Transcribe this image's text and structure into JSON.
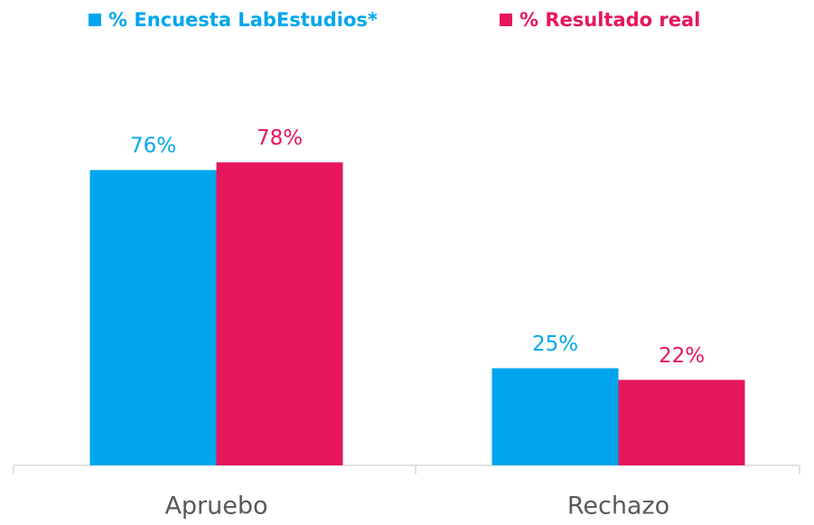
{
  "chart_data": {
    "type": "bar",
    "categories": [
      "Apruebo",
      "Rechazo"
    ],
    "series": [
      {
        "name": "% Encuesta LabEstudios*",
        "color": "#00a6ed",
        "values": [
          76,
          25
        ],
        "value_labels": [
          "76%",
          "25%"
        ]
      },
      {
        "name": "% Resultado real",
        "color": "#e6175a",
        "values": [
          78,
          22
        ],
        "value_labels": [
          "78%",
          "22%"
        ]
      }
    ]
  }
}
